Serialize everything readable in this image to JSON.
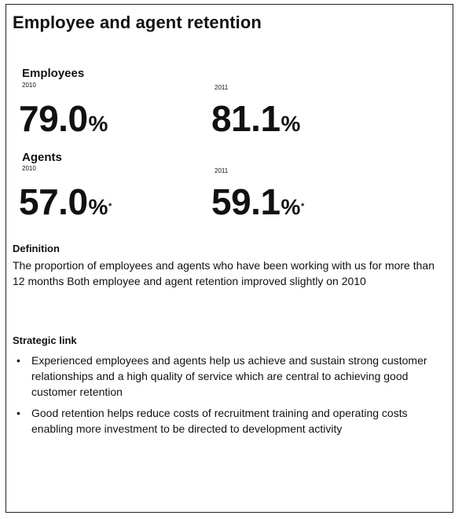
{
  "title": "Employee and agent retention",
  "employees": {
    "label": "Employees",
    "y1": "2010",
    "v1": "79.0",
    "y2": "2011",
    "v2": "81.1",
    "unit": "%"
  },
  "agents": {
    "label": "Agents",
    "y1": "2010",
    "v1": "57.0",
    "y2": "2011",
    "v2": "59.1",
    "unit": "%",
    "mark": "*"
  },
  "definition": {
    "heading": "Definition",
    "text": "The proportion of employees and agents who have been working with us for more than 12 months Both employee and agent retention improved slightly on 2010"
  },
  "strategic": {
    "heading": "Strategic link",
    "bullet_glyph": "•",
    "items": [
      "Experienced employees and agents help us achieve and sustain strong customer relationships and a high quality of service which are central to achieving good customer retention",
      "Good retention helps reduce costs of recruitment training and operating costs enabling more investment to be directed to development activity"
    ]
  }
}
